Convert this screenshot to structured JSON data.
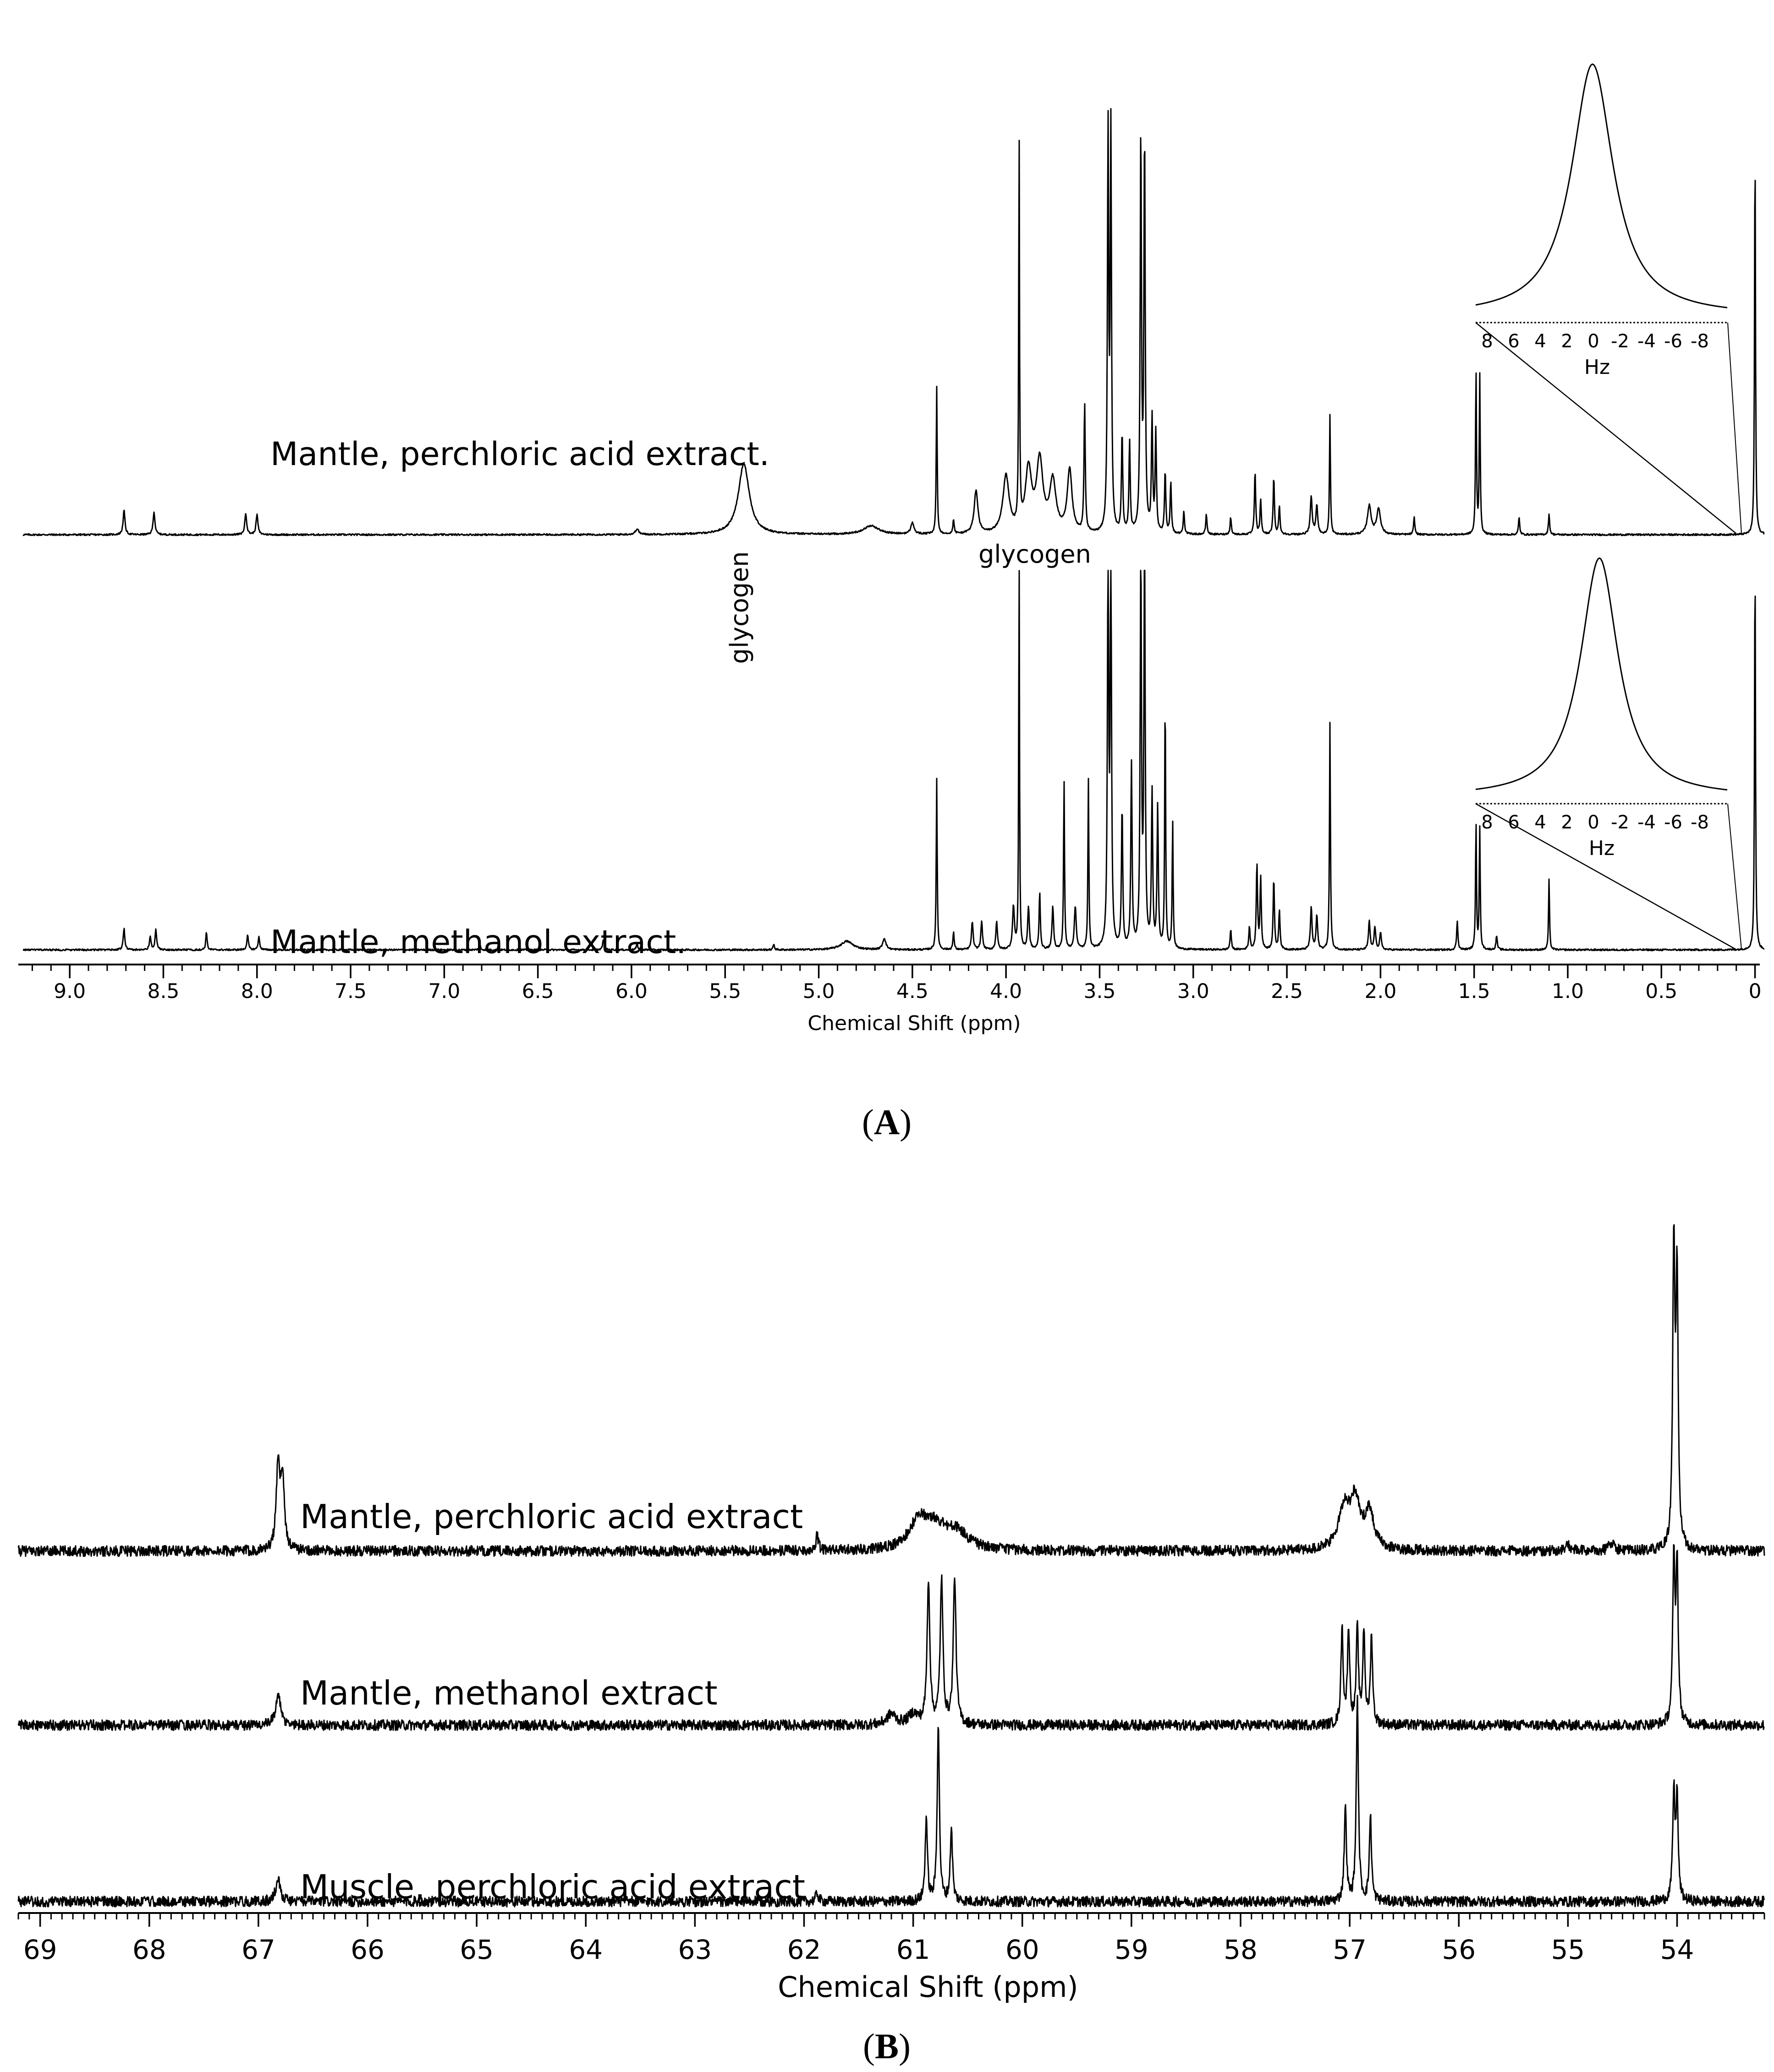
{
  "chart_data": [
    {
      "type": "line",
      "panel_label": "A",
      "xlabel": "Chemical Shift (ppm)",
      "xlim": [
        9.25,
        -0.05
      ],
      "x_ticks": [
        "9.0",
        "8.5",
        "8.0",
        "7.5",
        "7.0",
        "6.5",
        "6.0",
        "5.5",
        "5.0",
        "4.5",
        "4.0",
        "3.5",
        "3.0",
        "2.5",
        "2.0",
        "1.5",
        "1.0",
        "0.5",
        "0"
      ],
      "x_tick_values": [
        9.0,
        8.5,
        8.0,
        7.5,
        7.0,
        6.5,
        6.0,
        5.5,
        5.0,
        4.5,
        4.0,
        3.5,
        3.0,
        2.5,
        2.0,
        1.5,
        1.0,
        0.5,
        0.0
      ],
      "series": [
        {
          "name": "Mantle, perchloric acid extract.",
          "peaks": [
            {
              "ppm": 8.71,
              "h": 0.085,
              "w": 0.006
            },
            {
              "ppm": 8.55,
              "h": 0.08,
              "w": 0.006
            },
            {
              "ppm": 8.06,
              "h": 0.075,
              "w": 0.006
            },
            {
              "ppm": 8.0,
              "h": 0.07,
              "w": 0.006
            },
            {
              "ppm": 5.97,
              "h": 0.02,
              "w": 0.01
            },
            {
              "ppm": 5.4,
              "h": 0.25,
              "w": 0.035
            },
            {
              "ppm": 4.72,
              "h": 0.03,
              "w": 0.05
            },
            {
              "ppm": 4.5,
              "h": 0.04,
              "w": 0.01
            },
            {
              "ppm": 4.37,
              "h": 0.52,
              "w": 0.003
            },
            {
              "ppm": 4.28,
              "h": 0.05,
              "w": 0.004
            },
            {
              "ppm": 4.16,
              "h": 0.15,
              "w": 0.012
            },
            {
              "ppm": 4.0,
              "h": 0.2,
              "w": 0.02
            },
            {
              "ppm": 3.93,
              "h": 1.4,
              "w": 0.0025
            },
            {
              "ppm": 3.88,
              "h": 0.22,
              "w": 0.02
            },
            {
              "ppm": 3.82,
              "h": 0.25,
              "w": 0.02
            },
            {
              "ppm": 3.75,
              "h": 0.18,
              "w": 0.02
            },
            {
              "ppm": 3.66,
              "h": 0.22,
              "w": 0.015
            },
            {
              "ppm": 3.58,
              "h": 0.45,
              "w": 0.004
            },
            {
              "ppm": 3.455,
              "h": 1.4,
              "w": 0.004
            },
            {
              "ppm": 3.44,
              "h": 1.4,
              "w": 0.004
            },
            {
              "ppm": 3.38,
              "h": 0.35,
              "w": 0.004
            },
            {
              "ppm": 3.34,
              "h": 0.32,
              "w": 0.004
            },
            {
              "ppm": 3.28,
              "h": 1.4,
              "w": 0.004
            },
            {
              "ppm": 3.26,
              "h": 1.4,
              "w": 0.004
            },
            {
              "ppm": 3.22,
              "h": 0.4,
              "w": 0.004
            },
            {
              "ppm": 3.2,
              "h": 0.35,
              "w": 0.004
            },
            {
              "ppm": 3.15,
              "h": 0.22,
              "w": 0.004
            },
            {
              "ppm": 3.12,
              "h": 0.18,
              "w": 0.004
            },
            {
              "ppm": 3.05,
              "h": 0.08,
              "w": 0.004
            },
            {
              "ppm": 2.93,
              "h": 0.07,
              "w": 0.004
            },
            {
              "ppm": 2.8,
              "h": 0.06,
              "w": 0.004
            },
            {
              "ppm": 2.67,
              "h": 0.22,
              "w": 0.004
            },
            {
              "ppm": 2.64,
              "h": 0.12,
              "w": 0.004
            },
            {
              "ppm": 2.57,
              "h": 0.2,
              "w": 0.004
            },
            {
              "ppm": 2.54,
              "h": 0.1,
              "w": 0.004
            },
            {
              "ppm": 2.37,
              "h": 0.13,
              "w": 0.006
            },
            {
              "ppm": 2.34,
              "h": 0.1,
              "w": 0.006
            },
            {
              "ppm": 2.27,
              "h": 0.42,
              "w": 0.003
            },
            {
              "ppm": 2.06,
              "h": 0.1,
              "w": 0.012
            },
            {
              "ppm": 2.01,
              "h": 0.09,
              "w": 0.012
            },
            {
              "ppm": 1.82,
              "h": 0.06,
              "w": 0.004
            },
            {
              "ppm": 1.49,
              "h": 0.58,
              "w": 0.003
            },
            {
              "ppm": 1.47,
              "h": 0.56,
              "w": 0.003
            },
            {
              "ppm": 1.26,
              "h": 0.06,
              "w": 0.004
            },
            {
              "ppm": 1.1,
              "h": 0.07,
              "w": 0.004
            },
            {
              "ppm": 0.0,
              "h": 1.4,
              "w": 0.003
            }
          ]
        },
        {
          "name": "Mantle, methanol extract.",
          "peaks": [
            {
              "ppm": 8.71,
              "h": 0.075,
              "w": 0.005
            },
            {
              "ppm": 8.57,
              "h": 0.045,
              "w": 0.005
            },
            {
              "ppm": 8.54,
              "h": 0.07,
              "w": 0.005
            },
            {
              "ppm": 8.27,
              "h": 0.065,
              "w": 0.004
            },
            {
              "ppm": 8.05,
              "h": 0.05,
              "w": 0.005
            },
            {
              "ppm": 7.99,
              "h": 0.045,
              "w": 0.005
            },
            {
              "ppm": 6.81,
              "h": 0.02,
              "w": 0.004
            },
            {
              "ppm": 6.15,
              "h": 0.035,
              "w": 0.005
            },
            {
              "ppm": 5.97,
              "h": 0.02,
              "w": 0.005
            },
            {
              "ppm": 5.24,
              "h": 0.02,
              "w": 0.004
            },
            {
              "ppm": 4.85,
              "h": 0.03,
              "w": 0.04
            },
            {
              "ppm": 4.65,
              "h": 0.04,
              "w": 0.01
            },
            {
              "ppm": 4.37,
              "h": 0.6,
              "w": 0.003
            },
            {
              "ppm": 4.28,
              "h": 0.06,
              "w": 0.004
            },
            {
              "ppm": 4.18,
              "h": 0.1,
              "w": 0.005
            },
            {
              "ppm": 4.13,
              "h": 0.1,
              "w": 0.005
            },
            {
              "ppm": 4.05,
              "h": 0.1,
              "w": 0.005
            },
            {
              "ppm": 3.96,
              "h": 0.15,
              "w": 0.006
            },
            {
              "ppm": 3.93,
              "h": 1.4,
              "w": 0.0025
            },
            {
              "ppm": 3.88,
              "h": 0.15,
              "w": 0.005
            },
            {
              "ppm": 3.82,
              "h": 0.2,
              "w": 0.004
            },
            {
              "ppm": 3.75,
              "h": 0.15,
              "w": 0.005
            },
            {
              "ppm": 3.69,
              "h": 0.6,
              "w": 0.003
            },
            {
              "ppm": 3.63,
              "h": 0.15,
              "w": 0.006
            },
            {
              "ppm": 3.56,
              "h": 0.6,
              "w": 0.003
            },
            {
              "ppm": 3.455,
              "h": 1.4,
              "w": 0.004
            },
            {
              "ppm": 3.44,
              "h": 1.4,
              "w": 0.004
            },
            {
              "ppm": 3.38,
              "h": 0.5,
              "w": 0.004
            },
            {
              "ppm": 3.33,
              "h": 0.65,
              "w": 0.004
            },
            {
              "ppm": 3.28,
              "h": 1.4,
              "w": 0.004
            },
            {
              "ppm": 3.26,
              "h": 1.4,
              "w": 0.004
            },
            {
              "ppm": 3.22,
              "h": 0.55,
              "w": 0.004
            },
            {
              "ppm": 3.19,
              "h": 0.5,
              "w": 0.004
            },
            {
              "ppm": 3.15,
              "h": 0.9,
              "w": 0.003
            },
            {
              "ppm": 3.11,
              "h": 0.45,
              "w": 0.003
            },
            {
              "ppm": 2.8,
              "h": 0.07,
              "w": 0.004
            },
            {
              "ppm": 2.7,
              "h": 0.08,
              "w": 0.004
            },
            {
              "ppm": 2.66,
              "h": 0.3,
              "w": 0.004
            },
            {
              "ppm": 2.64,
              "h": 0.25,
              "w": 0.004
            },
            {
              "ppm": 2.57,
              "h": 0.25,
              "w": 0.004
            },
            {
              "ppm": 2.54,
              "h": 0.14,
              "w": 0.004
            },
            {
              "ppm": 2.37,
              "h": 0.15,
              "w": 0.005
            },
            {
              "ppm": 2.34,
              "h": 0.12,
              "w": 0.005
            },
            {
              "ppm": 2.27,
              "h": 0.8,
              "w": 0.003
            },
            {
              "ppm": 2.06,
              "h": 0.1,
              "w": 0.005
            },
            {
              "ppm": 2.03,
              "h": 0.08,
              "w": 0.005
            },
            {
              "ppm": 2.0,
              "h": 0.06,
              "w": 0.005
            },
            {
              "ppm": 1.59,
              "h": 0.1,
              "w": 0.004
            },
            {
              "ppm": 1.49,
              "h": 0.45,
              "w": 0.003
            },
            {
              "ppm": 1.47,
              "h": 0.43,
              "w": 0.003
            },
            {
              "ppm": 1.38,
              "h": 0.05,
              "w": 0.004
            },
            {
              "ppm": 1.1,
              "h": 0.25,
              "w": 0.003
            },
            {
              "ppm": 0.0,
              "h": 1.4,
              "w": 0.003
            }
          ]
        }
      ],
      "annotations": [
        {
          "text": "glycogen",
          "ppm": 5.4,
          "orientation": "vertical"
        },
        {
          "text": "glycogen",
          "ppm": 3.75,
          "orientation": "horizontal"
        }
      ],
      "insets": [
        {
          "series": 0,
          "x_ticks": [
            "8",
            "6",
            "4",
            "2",
            "0",
            "-2",
            "-4",
            "-6",
            "-8"
          ],
          "xlabel": "Hz"
        },
        {
          "series": 1,
          "x_ticks": [
            "8",
            "6",
            "4",
            "2",
            "0",
            "-2",
            "-4",
            "-6",
            "-8"
          ],
          "xlabel": "Hz"
        }
      ]
    },
    {
      "type": "line",
      "panel_label": "B",
      "xlabel": "Chemical Shift (ppm)",
      "xlim": [
        69.2,
        53.2
      ],
      "x_ticks": [
        "69",
        "68",
        "67",
        "66",
        "65",
        "64",
        "63",
        "62",
        "61",
        "60",
        "59",
        "58",
        "57",
        "56",
        "55",
        "54"
      ],
      "x_tick_values": [
        69,
        68,
        67,
        66,
        65,
        64,
        63,
        62,
        61,
        60,
        59,
        58,
        57,
        56,
        55,
        54
      ],
      "series": [
        {
          "name": "Mantle, perchloric acid extract",
          "peaks": [
            {
              "ppm": 66.82,
              "h": 0.38,
              "w": 0.02
            },
            {
              "ppm": 66.78,
              "h": 0.34,
              "w": 0.02
            },
            {
              "ppm": 61.88,
              "h": 0.07,
              "w": 0.015
            },
            {
              "ppm": 60.95,
              "h": 0.13,
              "w": 0.1
            },
            {
              "ppm": 60.8,
              "h": 0.1,
              "w": 0.12
            },
            {
              "ppm": 60.6,
              "h": 0.08,
              "w": 0.12
            },
            {
              "ppm": 57.05,
              "h": 0.2,
              "w": 0.06
            },
            {
              "ppm": 56.95,
              "h": 0.22,
              "w": 0.05
            },
            {
              "ppm": 56.82,
              "h": 0.18,
              "w": 0.05
            },
            {
              "ppm": 55.0,
              "h": 0.025,
              "w": 0.03
            },
            {
              "ppm": 54.6,
              "h": 0.04,
              "w": 0.03
            },
            {
              "ppm": 54.03,
              "h": 1.4,
              "w": 0.012
            },
            {
              "ppm": 54.0,
              "h": 1.25,
              "w": 0.012
            }
          ]
        },
        {
          "name": "Mantle, methanol extract",
          "peaks": [
            {
              "ppm": 66.82,
              "h": 0.15,
              "w": 0.025
            },
            {
              "ppm": 61.2,
              "h": 0.05,
              "w": 0.05
            },
            {
              "ppm": 61.0,
              "h": 0.05,
              "w": 0.05
            },
            {
              "ppm": 60.86,
              "h": 0.68,
              "w": 0.015
            },
            {
              "ppm": 60.74,
              "h": 0.68,
              "w": 0.015
            },
            {
              "ppm": 60.62,
              "h": 0.7,
              "w": 0.015
            },
            {
              "ppm": 57.07,
              "h": 0.45,
              "w": 0.012
            },
            {
              "ppm": 57.01,
              "h": 0.45,
              "w": 0.012
            },
            {
              "ppm": 56.93,
              "h": 0.45,
              "w": 0.012
            },
            {
              "ppm": 56.87,
              "h": 0.44,
              "w": 0.012
            },
            {
              "ppm": 56.8,
              "h": 0.42,
              "w": 0.012
            },
            {
              "ppm": 54.03,
              "h": 0.75,
              "w": 0.012
            },
            {
              "ppm": 54.0,
              "h": 0.75,
              "w": 0.012
            }
          ]
        },
        {
          "name": "Muscle, perchloric acid extract",
          "peaks": [
            {
              "ppm": 66.82,
              "h": 0.11,
              "w": 0.025
            },
            {
              "ppm": 61.88,
              "h": 0.04,
              "w": 0.015
            },
            {
              "ppm": 60.88,
              "h": 0.4,
              "w": 0.012
            },
            {
              "ppm": 60.77,
              "h": 0.85,
              "w": 0.012
            },
            {
              "ppm": 60.65,
              "h": 0.35,
              "w": 0.012
            },
            {
              "ppm": 57.04,
              "h": 0.45,
              "w": 0.012
            },
            {
              "ppm": 56.93,
              "h": 0.95,
              "w": 0.012
            },
            {
              "ppm": 56.81,
              "h": 0.4,
              "w": 0.012
            },
            {
              "ppm": 54.03,
              "h": 0.5,
              "w": 0.012
            },
            {
              "ppm": 54.0,
              "h": 0.48,
              "w": 0.012
            }
          ]
        }
      ]
    }
  ]
}
